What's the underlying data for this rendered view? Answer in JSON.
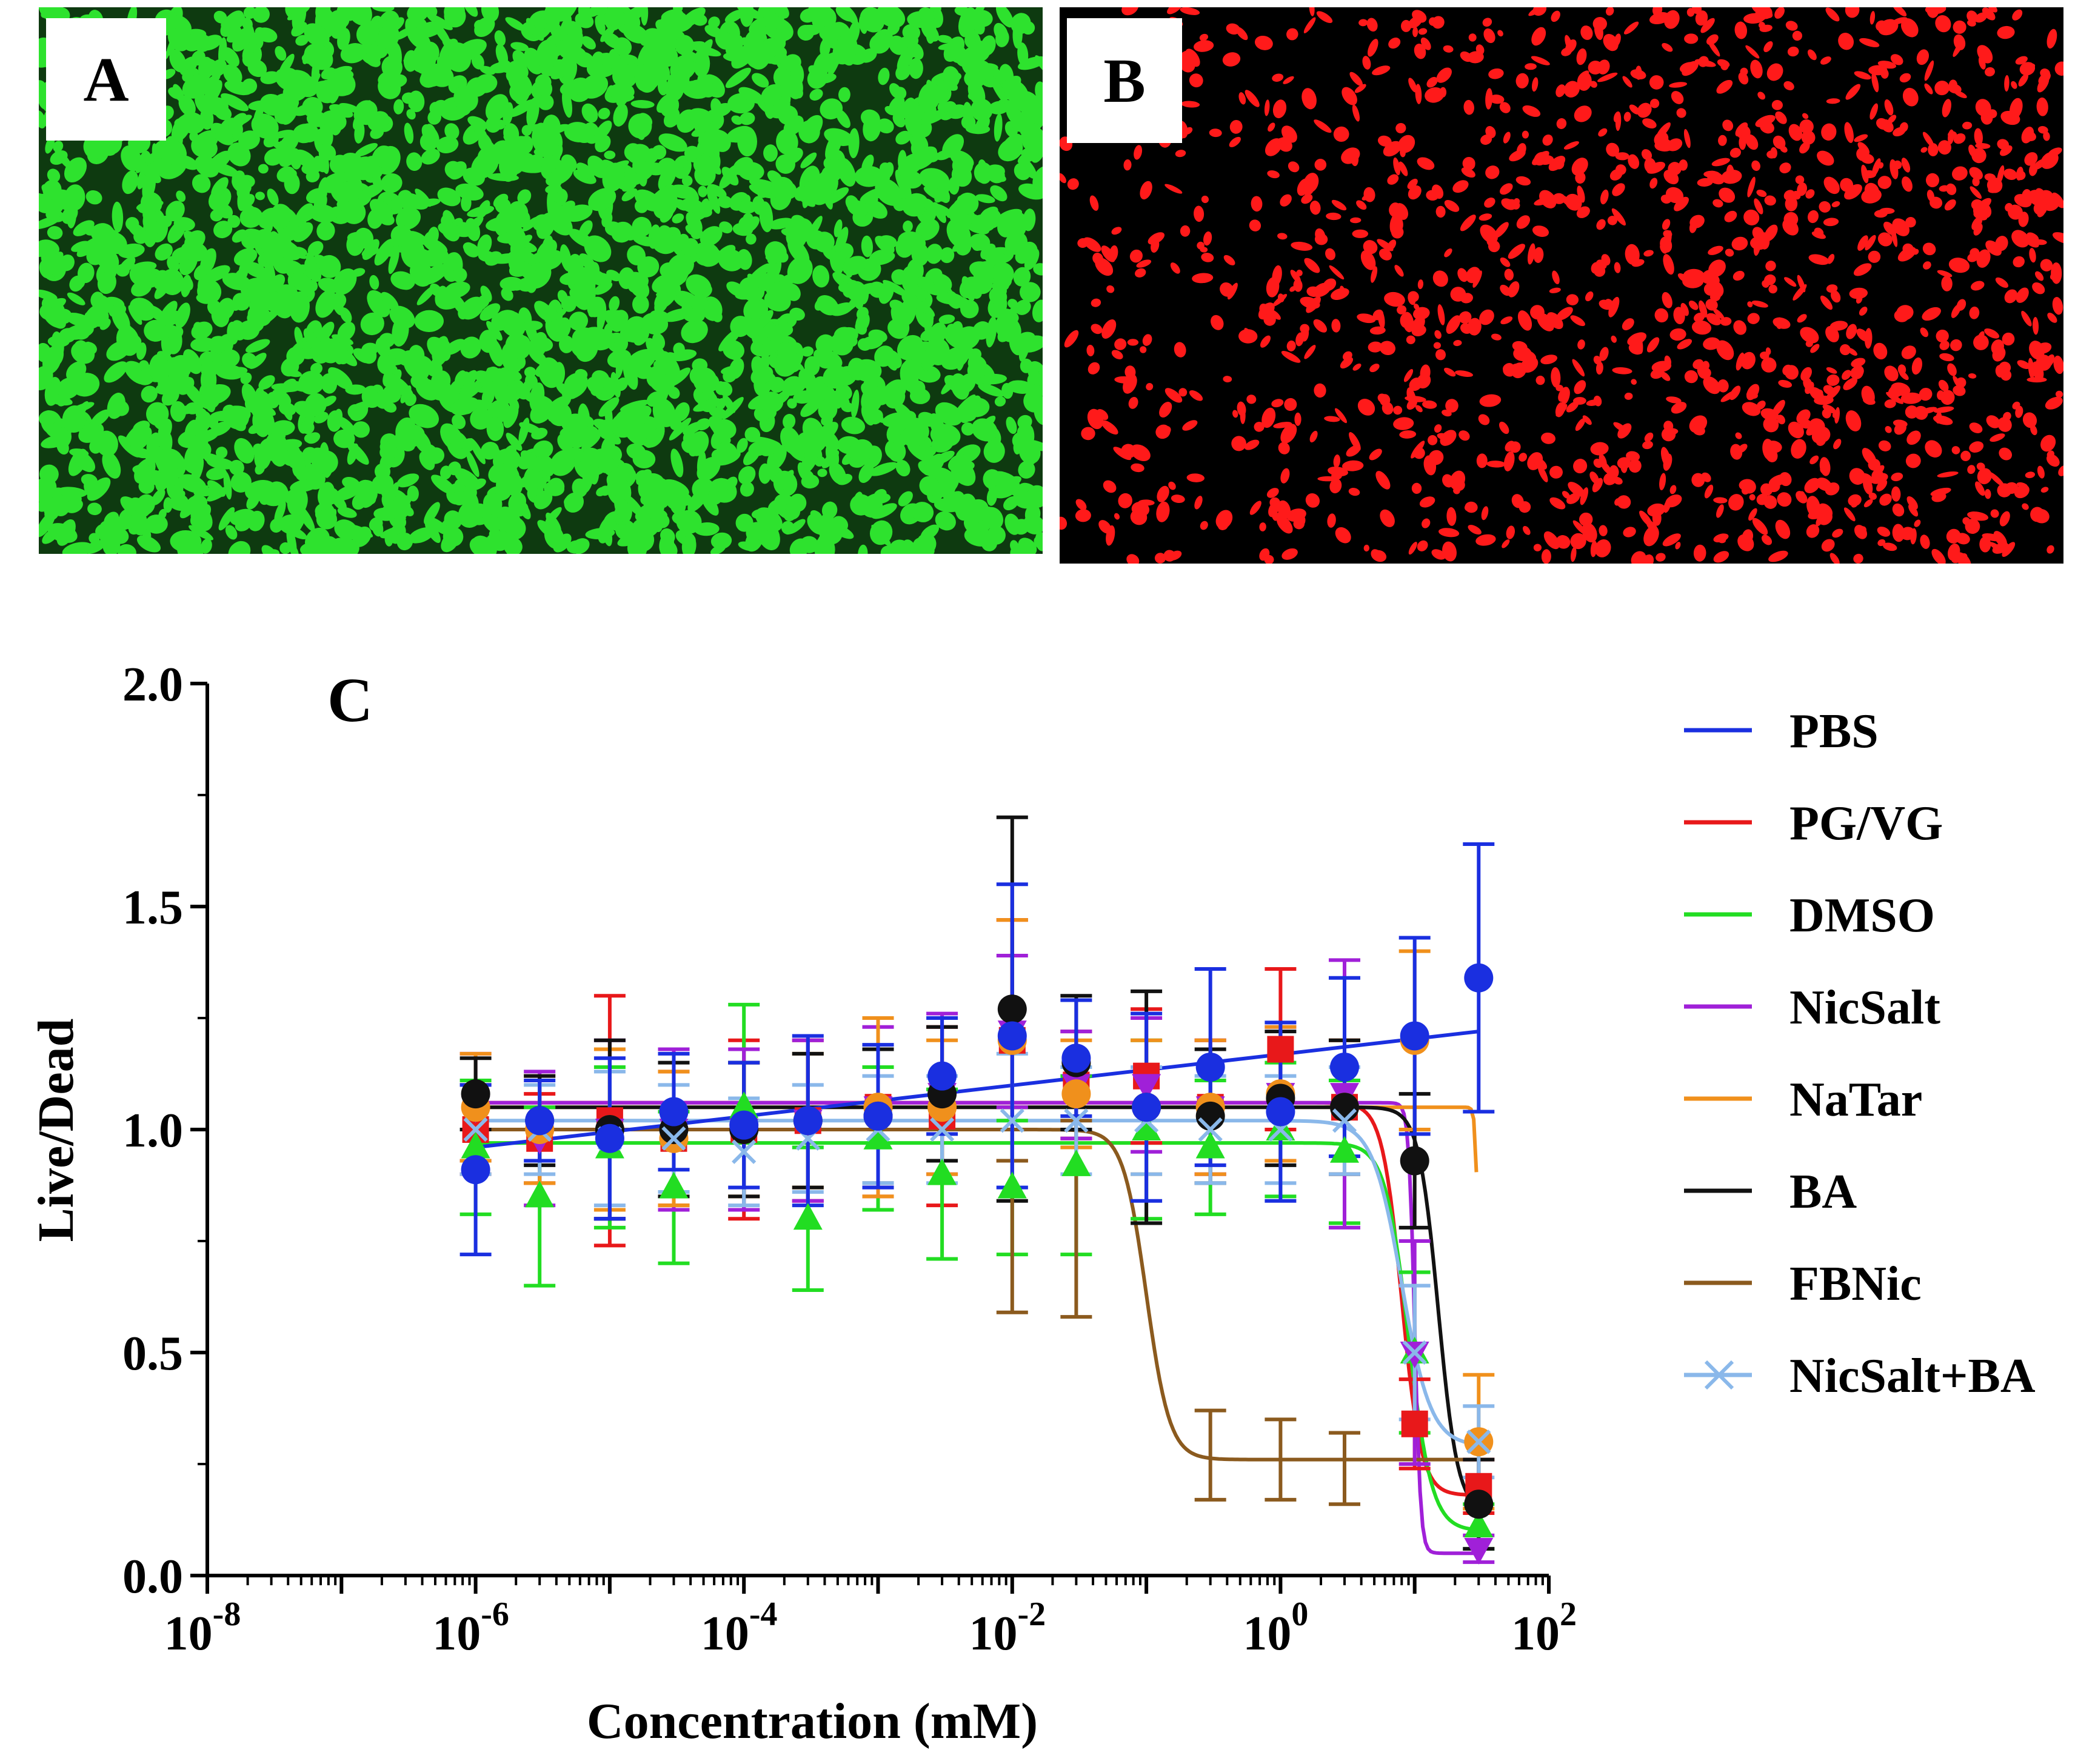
{
  "panels": {
    "a": {
      "label": "A",
      "color": "#2ee22e",
      "background": "#0e3a10"
    },
    "b": {
      "label": "B",
      "color": "#ff1a1a",
      "background": "#000000"
    },
    "c": {
      "label": "C"
    }
  },
  "chart_data": {
    "type": "scatter",
    "xscale": "log",
    "xlabel": "Concentration (mM)",
    "ylabel": "Live/Dead",
    "xlim": [
      1e-08,
      100
    ],
    "ylim": [
      0,
      2.0
    ],
    "x_tick_labels": [
      {
        "base": "10",
        "exp": "-8",
        "value": 1e-08
      },
      {
        "base": "10",
        "exp": "-6",
        "value": 1e-06
      },
      {
        "base": "10",
        "exp": "-4",
        "value": 0.0001
      },
      {
        "base": "10",
        "exp": "-2",
        "value": 0.01
      },
      {
        "base": "10",
        "exp": "0",
        "value": 1
      },
      {
        "base": "10",
        "exp": "2",
        "value": 100
      }
    ],
    "y_tick_labels": [
      "0.0",
      "0.5",
      "1.0",
      "1.5",
      "2.0"
    ],
    "y_ticks": [
      0,
      0.5,
      1.0,
      1.5,
      2.0
    ],
    "legend_position": "right",
    "x": [
      1e-06,
      3e-06,
      1e-05,
      3e-05,
      0.0001,
      0.0003,
      0.001,
      0.003,
      0.01,
      0.03,
      0.1,
      0.3,
      1,
      3,
      10,
      30
    ],
    "series": [
      {
        "name": "PG/VG",
        "color": "#e8181a",
        "marker": "square",
        "values": [
          1.0,
          0.98,
          1.02,
          0.98,
          1.0,
          1.02,
          1.05,
          1.03,
          1.2,
          1.1,
          1.12,
          1.05,
          1.18,
          1.05,
          0.34,
          0.2
        ],
        "errors": [
          0.1,
          0.1,
          0.28,
          0.15,
          0.2,
          0.18,
          0.2,
          0.2,
          0.27,
          0.12,
          0.15,
          0.15,
          0.18,
          0.15,
          0.1,
          0.06
        ],
        "fit": {
          "top": 1.06,
          "bottom": 0.18,
          "ec50": 8,
          "hill": 6
        }
      },
      {
        "name": "DMSO",
        "color": "#22dd22",
        "marker": "triangle",
        "values": [
          0.96,
          0.85,
          0.96,
          0.87,
          1.05,
          0.8,
          0.98,
          0.9,
          0.87,
          0.92,
          1.0,
          0.96,
          1.0,
          0.95,
          0.5,
          0.11
        ],
        "errors": [
          0.15,
          0.2,
          0.18,
          0.17,
          0.23,
          0.16,
          0.16,
          0.19,
          0.15,
          0.2,
          0.2,
          0.15,
          0.15,
          0.16,
          0.18,
          0.05
        ],
        "fit": {
          "top": 0.97,
          "bottom": 0.1,
          "ec50": 9,
          "hill": 5
        }
      },
      {
        "name": "NicSalt",
        "color": "#a020d8",
        "marker": "triangle-down",
        "values": [
          1.05,
          0.98,
          1.0,
          1.0,
          1.0,
          1.02,
          1.05,
          1.08,
          1.22,
          1.1,
          1.1,
          1.05,
          1.08,
          1.08,
          0.5,
          0.06
        ],
        "errors": [
          0.12,
          0.15,
          0.2,
          0.18,
          0.18,
          0.18,
          0.18,
          0.18,
          0.17,
          0.12,
          0.15,
          0.15,
          0.15,
          0.3,
          0.25,
          0.03
        ],
        "fit": {
          "top": 1.06,
          "bottom": 0.05,
          "ec50": 10,
          "hill": 20
        }
      },
      {
        "name": "NaTar",
        "color": "#f0901c",
        "marker": "circle",
        "values": [
          1.05,
          1.0,
          1.0,
          0.98,
          1.0,
          1.02,
          1.05,
          1.05,
          1.2,
          1.08,
          1.05,
          1.05,
          1.08,
          1.05,
          1.2,
          0.3
        ],
        "errors": [
          0.12,
          0.12,
          0.18,
          0.15,
          0.15,
          0.15,
          0.2,
          0.15,
          0.27,
          0.12,
          0.15,
          0.15,
          0.15,
          0.15,
          0.2,
          0.15
        ],
        "fit": {
          "top": 1.05,
          "bottom": 0.2,
          "ec50": 30,
          "hill": 40
        }
      },
      {
        "name": "BA",
        "color": "#111111",
        "marker": "circle",
        "values": [
          1.08,
          1.02,
          1.0,
          1.0,
          1.0,
          1.02,
          1.03,
          1.08,
          1.27,
          1.15,
          1.05,
          1.03,
          1.07,
          1.05,
          0.93,
          0.16
        ],
        "errors": [
          0.08,
          0.1,
          0.2,
          0.15,
          0.15,
          0.15,
          0.15,
          0.15,
          0.43,
          0.15,
          0.26,
          0.15,
          0.15,
          0.15,
          0.15,
          0.1
        ],
        "fit": {
          "top": 1.05,
          "bottom": 0.14,
          "ec50": 15,
          "hill": 6
        }
      },
      {
        "name": "FBNic",
        "color": "#8b5a1e",
        "marker": "none",
        "values": [
          null,
          null,
          null,
          null,
          null,
          null,
          null,
          null,
          0.76,
          0.8,
          0.72,
          0.27,
          0.26,
          0.24,
          null,
          null
        ],
        "errors": [
          0,
          0,
          0,
          0,
          0,
          0,
          0,
          0,
          0.17,
          0.22,
          0.0,
          0.1,
          0.09,
          0.08,
          0,
          0
        ],
        "fit": {
          "top": 1.0,
          "bottom": 0.26,
          "ec50": 0.1,
          "hill": 5
        }
      },
      {
        "name": "NicSalt+BA",
        "color": "#8ab8ea",
        "marker": "x",
        "values": [
          1.0,
          1.0,
          0.98,
          0.98,
          0.95,
          0.98,
          1.0,
          1.0,
          1.02,
          1.02,
          1.02,
          1.0,
          1.0,
          1.02,
          0.5,
          0.3
        ],
        "errors": [
          0.1,
          0.1,
          0.15,
          0.12,
          0.12,
          0.12,
          0.12,
          0.12,
          0.15,
          0.12,
          0.12,
          0.12,
          0.12,
          0.12,
          0.15,
          0.08
        ],
        "fit": {
          "top": 1.02,
          "bottom": 0.29,
          "ec50": 8,
          "hill": 4
        }
      },
      {
        "name": "PBS",
        "color": "#1a2fe0",
        "marker": "circle",
        "values": [
          0.91,
          1.02,
          0.98,
          1.04,
          1.01,
          1.02,
          1.03,
          1.12,
          1.21,
          1.16,
          1.05,
          1.14,
          1.04,
          1.14,
          1.21,
          1.34
        ],
        "errors": [
          0.19,
          0.09,
          0.18,
          0.13,
          0.14,
          0.19,
          0.16,
          0.13,
          0.34,
          0.13,
          0.21,
          0.22,
          0.2,
          0.2,
          0.22,
          0.3
        ],
        "fit": {
          "linear_log": true,
          "y_at_1e-6": 0.96,
          "y_at_30": 1.22
        }
      }
    ],
    "legend": [
      {
        "name": "PBS",
        "color": "#1a2fe0",
        "marker": "line"
      },
      {
        "name": "PG/VG",
        "color": "#e8181a",
        "marker": "line"
      },
      {
        "name": "DMSO",
        "color": "#22dd22",
        "marker": "line"
      },
      {
        "name": "NicSalt",
        "color": "#a020d8",
        "marker": "line"
      },
      {
        "name": "NaTar",
        "color": "#f0901c",
        "marker": "line"
      },
      {
        "name": "BA",
        "color": "#111111",
        "marker": "line"
      },
      {
        "name": "FBNic",
        "color": "#8b5a1e",
        "marker": "line"
      },
      {
        "name": "NicSalt+BA",
        "color": "#8ab8ea",
        "marker": "x"
      }
    ]
  }
}
